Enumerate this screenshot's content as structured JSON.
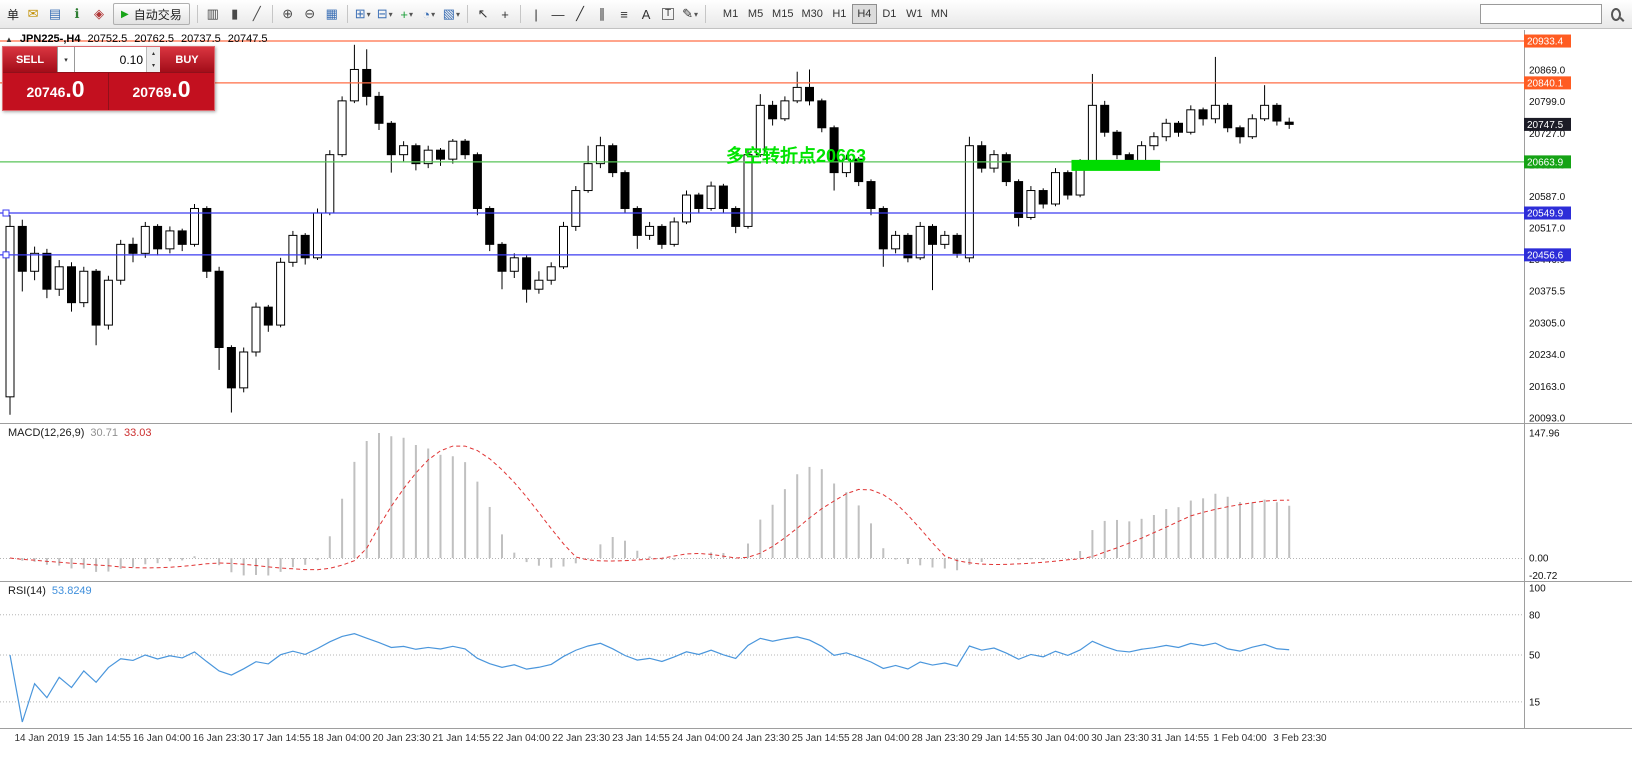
{
  "toolbar": {
    "order_text": "单",
    "dropdown_icon": "▾",
    "autotrade": {
      "label": "自动交易",
      "play_icon": "▶"
    },
    "items": [
      {
        "type": "label",
        "name": "order-text",
        "text": "单"
      },
      {
        "type": "icon",
        "name": "new-order-icon",
        "glyph": "✉",
        "color": "#c18f00"
      },
      {
        "type": "icon",
        "name": "market-watch-icon",
        "glyph": "▤",
        "color": "#3b6fb5"
      },
      {
        "type": "icon",
        "name": "data-window-icon",
        "glyph": "ℹ",
        "color": "#2e7d32"
      },
      {
        "type": "icon",
        "name": "expert-advisors-icon",
        "glyph": "◈",
        "color": "#b03636"
      },
      {
        "type": "autotrade",
        "name": "autotrade-button"
      },
      {
        "type": "sep"
      },
      {
        "type": "icon",
        "name": "bar-chart-icon",
        "glyph": "▥",
        "color": "#4a4a4a"
      },
      {
        "type": "icon",
        "name": "candlestick-chart-icon",
        "glyph": "▮",
        "color": "#4a4a4a"
      },
      {
        "type": "icon",
        "name": "line-chart-icon",
        "glyph": "╱",
        "color": "#4a4a4a"
      },
      {
        "type": "sep"
      },
      {
        "type": "icon",
        "name": "zoom-in-icon",
        "glyph": "⊕",
        "color": "#4a4a4a"
      },
      {
        "type": "icon",
        "name": "zoom-out-icon",
        "glyph": "⊖",
        "color": "#4a4a4a"
      },
      {
        "type": "icon",
        "name": "tile-windows-icon",
        "glyph": "▦",
        "color": "#3b6fb5"
      },
      {
        "type": "sep"
      },
      {
        "type": "icon",
        "name": "new-chart-icon",
        "glyph": "⊞",
        "color": "#3b6fb5",
        "dd": true
      },
      {
        "type": "icon",
        "name": "profiles-icon",
        "glyph": "⊟",
        "color": "#3b6fb5",
        "dd": true
      },
      {
        "type": "icon",
        "name": "indicators-icon",
        "glyph": "+",
        "color": "#1c9e3a",
        "dd": true
      },
      {
        "type": "icon",
        "name": "periods-icon",
        "glyph": "◔",
        "color": "#3b6fb5",
        "dd": true
      },
      {
        "type": "icon",
        "name": "templates-icon",
        "glyph": "▧",
        "color": "#3b6fb5",
        "dd": true
      },
      {
        "type": "sep"
      },
      {
        "type": "icon",
        "name": "cursor-icon",
        "glyph": "↖",
        "color": "#333333"
      },
      {
        "type": "icon",
        "name": "crosshair-icon",
        "glyph": "+",
        "color": "#333333"
      },
      {
        "type": "sep"
      },
      {
        "type": "icon",
        "name": "vertical-line-icon",
        "glyph": "|",
        "color": "#333333"
      },
      {
        "type": "icon",
        "name": "horizontal-line-icon",
        "glyph": "—",
        "color": "#333333"
      },
      {
        "type": "icon",
        "name": "trendline-icon",
        "glyph": "╱",
        "color": "#333333"
      },
      {
        "type": "icon",
        "name": "channel-icon",
        "glyph": "∥",
        "color": "#333333"
      },
      {
        "type": "icon",
        "name": "fibonacci-icon",
        "glyph": "≡",
        "color": "#333333"
      },
      {
        "type": "icon",
        "name": "text-icon",
        "glyph": "A",
        "color": "#333333"
      },
      {
        "type": "icon",
        "name": "text-label-icon",
        "glyph": "T",
        "color": "#333333",
        "boxed": true
      },
      {
        "type": "icon",
        "name": "arrows-icon",
        "glyph": "✎",
        "color": "#333333",
        "dd": true
      },
      {
        "type": "sep"
      }
    ],
    "timeframes": [
      "M1",
      "M5",
      "M15",
      "M30",
      "H1",
      "H4",
      "D1",
      "W1",
      "MN"
    ],
    "active_timeframe": "H4"
  },
  "header": {
    "collapse_icon": "▲",
    "symbol": "JPN225-,H4",
    "open": "20752.5",
    "high": "20762.5",
    "low": "20737.5",
    "close": "20747.5"
  },
  "one_click": {
    "sell_label": "SELL",
    "buy_label": "BUY",
    "volume": "0.10",
    "dropdown_icon": "▾",
    "spin_up_icon": "▴",
    "spin_down_icon": "▾",
    "sell_price_main": "20746",
    "sell_price_big": ".0",
    "buy_price_main": "20769",
    "buy_price_big": ".0"
  },
  "annotation": {
    "text": "多空转折点20663",
    "color": "#00e400"
  },
  "indicators": {
    "macd": {
      "name": "MACD(12,26,9)",
      "value1": "30.71",
      "value2": "33.03"
    },
    "rsi": {
      "name": "RSI(14)",
      "value": "53.8249"
    }
  },
  "chart_data": {
    "type": "candlestick",
    "symbol": "JPN225-",
    "timeframe": "H4",
    "candles": [
      [
        20140,
        20545,
        20100,
        20520
      ],
      [
        20520,
        20535,
        20375,
        20420
      ],
      [
        20420,
        20475,
        20400,
        20460
      ],
      [
        20460,
        20470,
        20360,
        20380
      ],
      [
        20380,
        20445,
        20365,
        20430
      ],
      [
        20430,
        20440,
        20330,
        20350
      ],
      [
        20350,
        20430,
        20340,
        20420
      ],
      [
        20420,
        20425,
        20255,
        20300
      ],
      [
        20300,
        20410,
        20290,
        20400
      ],
      [
        20400,
        20490,
        20390,
        20480
      ],
      [
        20480,
        20495,
        20440,
        20460
      ],
      [
        20460,
        20530,
        20450,
        20520
      ],
      [
        20520,
        20525,
        20455,
        20470
      ],
      [
        20470,
        20520,
        20460,
        20510
      ],
      [
        20510,
        20515,
        20465,
        20480
      ],
      [
        20480,
        20570,
        20475,
        20560
      ],
      [
        20560,
        20565,
        20405,
        20420
      ],
      [
        20420,
        20430,
        20200,
        20250
      ],
      [
        20250,
        20255,
        20105,
        20160
      ],
      [
        20160,
        20250,
        20150,
        20240
      ],
      [
        20240,
        20350,
        20230,
        20340
      ],
      [
        20340,
        20345,
        20285,
        20300
      ],
      [
        20300,
        20450,
        20295,
        20440
      ],
      [
        20440,
        20510,
        20430,
        20500
      ],
      [
        20500,
        20505,
        20435,
        20450
      ],
      [
        20450,
        20560,
        20445,
        20550
      ],
      [
        20550,
        20690,
        20545,
        20680
      ],
      [
        20680,
        20810,
        20675,
        20800
      ],
      [
        20800,
        20925,
        20795,
        20870
      ],
      [
        20870,
        20915,
        20790,
        20810
      ],
      [
        20810,
        20820,
        20735,
        20750
      ],
      [
        20750,
        20755,
        20640,
        20680
      ],
      [
        20680,
        20710,
        20665,
        20700
      ],
      [
        20700,
        20705,
        20645,
        20660
      ],
      [
        20660,
        20700,
        20650,
        20690
      ],
      [
        20690,
        20695,
        20655,
        20670
      ],
      [
        20670,
        20715,
        20660,
        20710
      ],
      [
        20710,
        20715,
        20670,
        20680
      ],
      [
        20680,
        20685,
        20545,
        20560
      ],
      [
        20560,
        20565,
        20465,
        20480
      ],
      [
        20480,
        20485,
        20380,
        20420
      ],
      [
        20420,
        20460,
        20405,
        20450
      ],
      [
        20450,
        20455,
        20350,
        20380
      ],
      [
        20380,
        20420,
        20370,
        20400
      ],
      [
        20400,
        20440,
        20390,
        20430
      ],
      [
        20430,
        20530,
        20425,
        20520
      ],
      [
        20520,
        20610,
        20510,
        20600
      ],
      [
        20600,
        20700,
        20595,
        20660
      ],
      [
        20660,
        20720,
        20650,
        20700
      ],
      [
        20700,
        20705,
        20630,
        20640
      ],
      [
        20640,
        20645,
        20550,
        20560
      ],
      [
        20560,
        20565,
        20470,
        20500
      ],
      [
        20500,
        20530,
        20490,
        20520
      ],
      [
        20520,
        20525,
        20470,
        20480
      ],
      [
        20480,
        20540,
        20475,
        20530
      ],
      [
        20530,
        20600,
        20525,
        20590
      ],
      [
        20590,
        20595,
        20550,
        20560
      ],
      [
        20560,
        20620,
        20555,
        20610
      ],
      [
        20610,
        20615,
        20550,
        20560
      ],
      [
        20560,
        20565,
        20505,
        20520
      ],
      [
        20520,
        20690,
        20515,
        20680
      ],
      [
        20680,
        20815,
        20675,
        20790
      ],
      [
        20790,
        20800,
        20745,
        20760
      ],
      [
        20760,
        20810,
        20755,
        20800
      ],
      [
        20800,
        20865,
        20795,
        20830
      ],
      [
        20830,
        20870,
        20790,
        20800
      ],
      [
        20800,
        20805,
        20730,
        20740
      ],
      [
        20740,
        20745,
        20600,
        20640
      ],
      [
        20640,
        20680,
        20630,
        20670
      ],
      [
        20670,
        20675,
        20610,
        20620
      ],
      [
        20620,
        20625,
        20545,
        20560
      ],
      [
        20560,
        20565,
        20430,
        20470
      ],
      [
        20470,
        20510,
        20460,
        20500
      ],
      [
        20500,
        20505,
        20440,
        20450
      ],
      [
        20450,
        20530,
        20445,
        20520
      ],
      [
        20520,
        20525,
        20378,
        20480
      ],
      [
        20480,
        20510,
        20470,
        20500
      ],
      [
        20500,
        20505,
        20450,
        20460
      ],
      [
        20450,
        20720,
        20440,
        20700
      ],
      [
        20700,
        20710,
        20640,
        20650
      ],
      [
        20650,
        20690,
        20640,
        20680
      ],
      [
        20680,
        20685,
        20610,
        20620
      ],
      [
        20620,
        20625,
        20520,
        20540
      ],
      [
        20540,
        20610,
        20535,
        20600
      ],
      [
        20600,
        20605,
        20560,
        20570
      ],
      [
        20570,
        20650,
        20565,
        20640
      ],
      [
        20640,
        20645,
        20580,
        20590
      ],
      [
        20590,
        20670,
        20585,
        20660
      ],
      [
        20660,
        20860,
        20655,
        20790
      ],
      [
        20790,
        20800,
        20720,
        20730
      ],
      [
        20730,
        20735,
        20670,
        20680
      ],
      [
        20680,
        20685,
        20646,
        20665
      ],
      [
        20665,
        20710,
        20660,
        20700
      ],
      [
        20700,
        20730,
        20690,
        20720
      ],
      [
        20720,
        20760,
        20710,
        20750
      ],
      [
        20750,
        20755,
        20720,
        20730
      ],
      [
        20730,
        20790,
        20725,
        20780
      ],
      [
        20780,
        20785,
        20745,
        20760
      ],
      [
        20760,
        20898,
        20750,
        20790
      ],
      [
        20790,
        20795,
        20730,
        20740
      ],
      [
        20740,
        20745,
        20705,
        20720
      ],
      [
        20720,
        20770,
        20715,
        20760
      ],
      [
        20760,
        20835,
        20755,
        20790
      ],
      [
        20790,
        20795,
        20745,
        20755
      ],
      [
        20752.5,
        20762.5,
        20737.5,
        20747.5
      ]
    ],
    "price_ticks": [
      "20869.0",
      "20799.0",
      "20727.0",
      "20657.0",
      "20587.0",
      "20517.0",
      "20446.0",
      "20375.5",
      "20305.0",
      "20234.0",
      "20163.0",
      "20093.0"
    ],
    "time_labels": [
      "14 Jan 2019",
      "15 Jan 14:55",
      "16 Jan 04:00",
      "16 Jan 23:30",
      "17 Jan 14:55",
      "18 Jan 04:00",
      "20 Jan 23:30",
      "21 Jan 14:55",
      "22 Jan 04:00",
      "22 Jan 23:30",
      "23 Jan 14:55",
      "24 Jan 04:00",
      "24 Jan 23:30",
      "25 Jan 14:55",
      "28 Jan 04:00",
      "28 Jan 23:30",
      "29 Jan 14:55",
      "30 Jan 04:00",
      "30 Jan 23:30",
      "31 Jan 14:55",
      "1 Feb 04:00",
      "3 Feb 23:30"
    ],
    "levels": [
      {
        "value": 20933.4,
        "label": "20933.4",
        "line": "#ff6e46",
        "badge": "#ff5c22"
      },
      {
        "value": 20840.1,
        "label": "20840.1",
        "line": "#ff6e46",
        "badge": "#ff5c22"
      },
      {
        "value": 20663.9,
        "label": "20663.9",
        "line": "#58c458",
        "badge": "#15a315"
      },
      {
        "value": 20549.9,
        "label": "20549.9",
        "line": "#3c3cf0",
        "badge": "#2d2dd8",
        "handles": true
      },
      {
        "value": 20456.6,
        "label": "20456.6",
        "line": "#3c3cf0",
        "badge": "#2d2dd8",
        "handles": true
      }
    ],
    "current_price": {
      "value": 20747.5,
      "label": "20747.5",
      "badge": "#1b1b26"
    },
    "highlight": {
      "from_index": 86.3,
      "to_index": 93.5,
      "value": 20663.9,
      "color": "#00dc00"
    },
    "macd": {
      "fast": 12,
      "slow": 26,
      "signal": 9,
      "axis_max": 147.96,
      "axis_min": -20.72,
      "axis_ticks": [
        "147.96",
        "0.00",
        "-20.72"
      ],
      "histogram_color": "#c0c0c0",
      "signal_color": "#e03535"
    },
    "rsi": {
      "period": 14,
      "levels": [
        80,
        50,
        15
      ],
      "axis_ticks": [
        {
          "v": 100,
          "t": "100"
        },
        {
          "v": 80,
          "t": "80"
        },
        {
          "v": 50,
          "t": "50"
        },
        {
          "v": 15,
          "t": "15"
        }
      ],
      "color": "#4a96dc"
    }
  }
}
